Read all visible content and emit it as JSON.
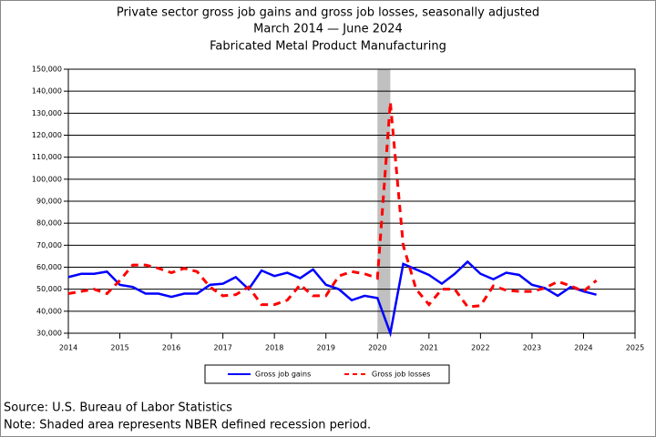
{
  "chart_data": {
    "type": "line",
    "title": "Private sector gross job gains and gross job losses, seasonally adjusted",
    "subtitle": "March 2014 — June 2024",
    "subtitle2": "Fabricated Metal Product Manufacturing",
    "x": [
      2014,
      2014.25,
      2014.5,
      2014.75,
      2015,
      2015.25,
      2015.5,
      2015.75,
      2016,
      2016.25,
      2016.5,
      2016.75,
      2017,
      2017.25,
      2017.5,
      2017.75,
      2018,
      2018.25,
      2018.5,
      2018.75,
      2019,
      2019.25,
      2019.5,
      2019.75,
      2020,
      2020.25,
      2020.5,
      2020.75,
      2021,
      2021.25,
      2021.5,
      2021.75,
      2022,
      2022.25,
      2022.5,
      2022.75,
      2023,
      2023.25,
      2023.5,
      2023.75,
      2024,
      2024.25
    ],
    "series": [
      {
        "name": "Gross job gains",
        "color": "#0000ff",
        "dash": false,
        "values": [
          55500,
          57000,
          57000,
          58000,
          52000,
          51000,
          48000,
          48000,
          46500,
          48000,
          48000,
          52000,
          52500,
          55500,
          50000,
          58500,
          56000,
          57500,
          55000,
          59000,
          52000,
          50000,
          45000,
          47000,
          46000,
          30000,
          61500,
          59000,
          56500,
          52500,
          57000,
          62500,
          57000,
          54500,
          57500,
          56500,
          52000,
          50500,
          47000,
          51000,
          49000,
          47500
        ]
      },
      {
        "name": "Gross job losses",
        "color": "#ff0000",
        "dash": true,
        "values": [
          48000,
          49000,
          50000,
          48000,
          54000,
          61000,
          61000,
          59500,
          57500,
          59500,
          58000,
          51000,
          47000,
          47500,
          51000,
          43000,
          43000,
          45000,
          52000,
          47000,
          47000,
          56000,
          58000,
          57000,
          55000,
          135000,
          70000,
          50000,
          43000,
          50000,
          50000,
          42000,
          42500,
          51500,
          49500,
          49000,
          49000,
          50500,
          53500,
          51500,
          49000,
          54000
        ]
      }
    ],
    "xlim": [
      2014,
      2025
    ],
    "xticks": [
      2014,
      2015,
      2016,
      2017,
      2018,
      2019,
      2020,
      2021,
      2022,
      2023,
      2024,
      2025
    ],
    "ylim": [
      30000,
      150000
    ],
    "yticks": [
      {
        "value": 30000,
        "label": "30,000"
      },
      {
        "value": 40000,
        "label": "40,000"
      },
      {
        "value": 50000,
        "label": "50,000"
      },
      {
        "value": 60000,
        "label": "60,000"
      },
      {
        "value": 70000,
        "label": "70,000"
      },
      {
        "value": 80000,
        "label": "80,000"
      },
      {
        "value": 90000,
        "label": "90,000"
      },
      {
        "value": 100000,
        "label": "100,000"
      },
      {
        "value": 110000,
        "label": "110,000"
      },
      {
        "value": 120000,
        "label": "120,000"
      },
      {
        "value": 130000,
        "label": "130,000"
      },
      {
        "value": 140000,
        "label": "140,000"
      },
      {
        "value": 150000,
        "label": "150,000"
      }
    ],
    "recession": [
      2020,
      2020.25
    ],
    "grid": true,
    "source": "Source: U.S. Bureau of Labor Statistics",
    "note": "Note: Shaded area represents NBER defined recession period."
  }
}
